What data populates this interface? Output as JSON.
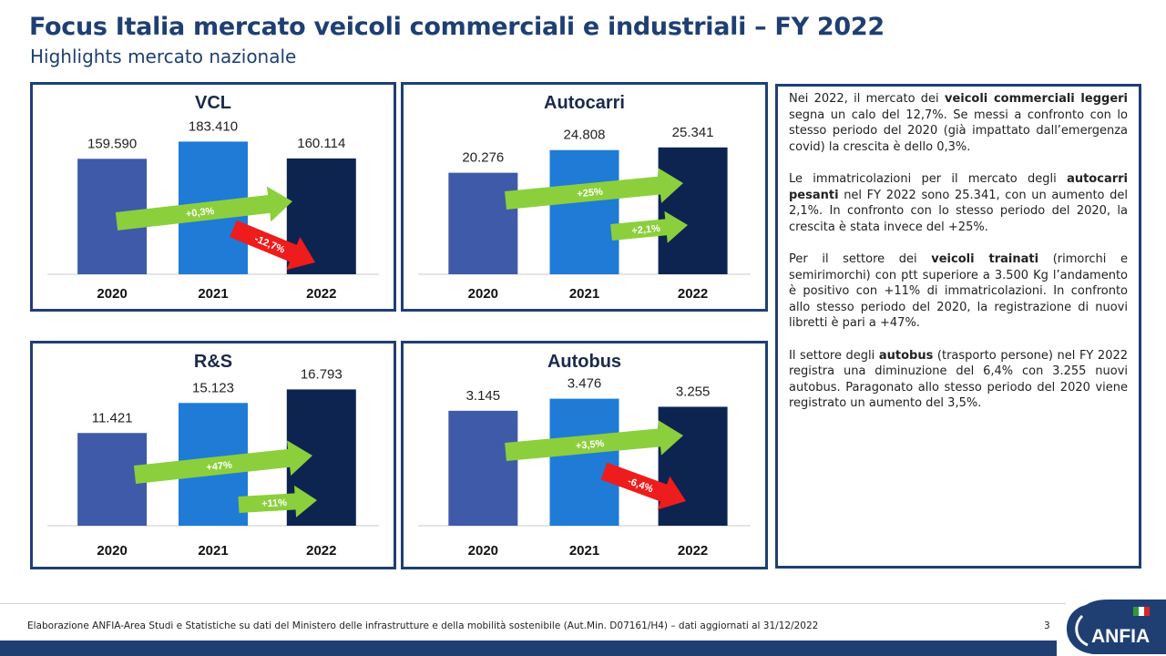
{
  "header": {
    "title": "Focus Italia mercato veicoli commerciali e industriali – FY 2022",
    "subtitle": "Highlights mercato nazionale"
  },
  "colors": {
    "c2020": "#3f5aa8",
    "c2021": "#1f7bd6",
    "c2022": "#0d2451",
    "arrow_up": "#8ccf3c",
    "arrow_down": "#ee1c1c",
    "frame": "#1f3f73"
  },
  "chart_data": [
    {
      "type": "bar",
      "title": "VCL",
      "categories": [
        "2020",
        "2021",
        "2022"
      ],
      "values": [
        159590,
        183410,
        160114
      ],
      "value_labels": [
        "159.590",
        "183.410",
        "160.114"
      ],
      "annotations": [
        {
          "text": "+0,3%",
          "direction": "up"
        },
        {
          "text": "-12,7%",
          "direction": "down"
        }
      ]
    },
    {
      "type": "bar",
      "title": "Autocarri",
      "categories": [
        "2020",
        "2021",
        "2022"
      ],
      "values": [
        20276,
        24808,
        25341
      ],
      "value_labels": [
        "20.276",
        "24.808",
        "25.341"
      ],
      "annotations": [
        {
          "text": "+25%",
          "direction": "up"
        },
        {
          "text": "+2,1%",
          "direction": "up"
        }
      ]
    },
    {
      "type": "bar",
      "title": "R&S",
      "categories": [
        "2020",
        "2021",
        "2022"
      ],
      "values": [
        11421,
        15123,
        16793
      ],
      "value_labels": [
        "11.421",
        "15.123",
        "16.793"
      ],
      "annotations": [
        {
          "text": "+47%",
          "direction": "up"
        },
        {
          "text": "+11%",
          "direction": "up"
        }
      ]
    },
    {
      "type": "bar",
      "title": "Autobus",
      "categories": [
        "2020",
        "2021",
        "2022"
      ],
      "values": [
        3145,
        3476,
        3255
      ],
      "value_labels": [
        "3.145",
        "3.476",
        "3.255"
      ],
      "annotations": [
        {
          "text": "+3,5%",
          "direction": "up"
        },
        {
          "text": "-6,4%",
          "direction": "down"
        }
      ]
    }
  ],
  "commentary": [
    [
      {
        "t": "Nei 2022, il mercato dei "
      },
      {
        "t": "veicoli commerciali leggeri",
        "b": true
      },
      {
        "t": " segna un calo del 12,7%. Se messi a confronto con lo stesso periodo del 2020 (già impattato dall’emergenza covid) la crescita è dello 0,3%."
      }
    ],
    [
      {
        "t": "Le immatricolazioni per il mercato degli "
      },
      {
        "t": "autocarri pesanti",
        "b": true
      },
      {
        "t": " nel FY 2022 sono 25.341, con un aumento del 2,1%. In confronto con lo stesso periodo del 2020, la crescita è stata invece del +25%."
      }
    ],
    [
      {
        "t": "Per il settore dei "
      },
      {
        "t": "veicoli trainati",
        "b": true
      },
      {
        "t": " (rimorchi e semirimorchi) con ptt superiore a 3.500 Kg l’andamento è positivo con +11% di immatricolazioni. In confronto allo stesso periodo del 2020, la registrazione di nuovi libretti è pari a +47%."
      }
    ],
    [
      {
        "t": "Il settore degli "
      },
      {
        "t": "autobus",
        "b": true
      },
      {
        "t": " (trasporto persone) nel FY 2022 registra una diminuzione del 6,4% con 3.255 nuovi autobus. Paragonato allo stesso periodo del 2020 viene registrato un aumento del 3,5%."
      }
    ]
  ],
  "footer": {
    "source": "Elaborazione ANFIA-Area Studi e Statistiche su dati del Ministero delle infrastrutture e della mobilità sostenibile (Aut.Min. D07161/H4) – dati aggiornati al 31/12/2022",
    "page": "3",
    "logo_text": "ANFIA"
  }
}
